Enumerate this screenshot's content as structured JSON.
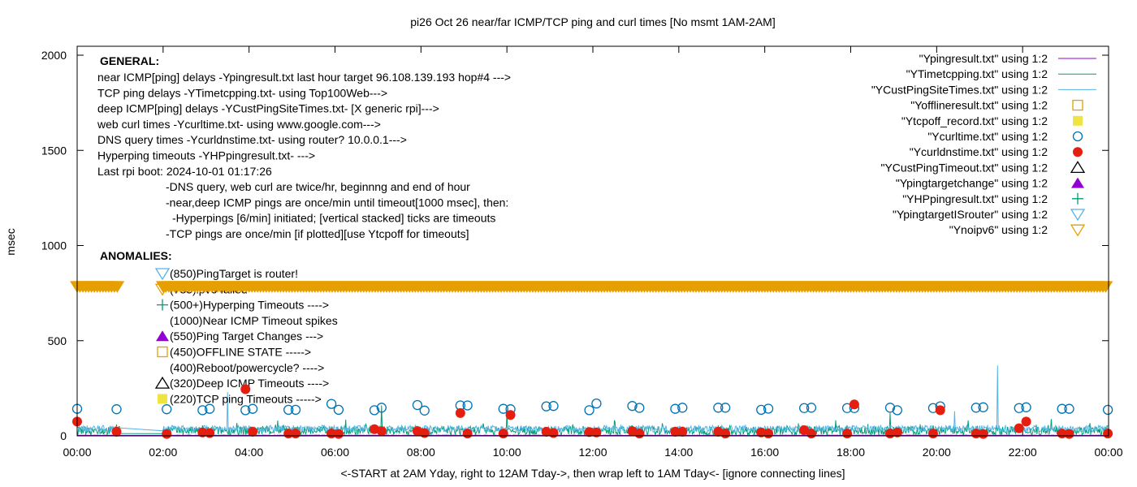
{
  "chart_data": {
    "type": "line",
    "title": "pi26 Oct 26  near/far ICMP/TCP ping and curl times [No msmt 1AM-2AM]",
    "xlabel": "<-START at 2AM Yday, right to 12AM Tday->, then wrap left to 1AM Tday<- [ignore connecting lines]",
    "ylabel": "msec",
    "ylim": [
      0,
      2000
    ],
    "yticks": [
      "0",
      "500",
      "1000",
      "1500",
      "2000"
    ],
    "xticks": [
      "00:00",
      "02:00",
      "04:00",
      "06:00",
      "08:00",
      "10:00",
      "12:00",
      "14:00",
      "16:00",
      "18:00",
      "20:00",
      "22:00",
      "00:00"
    ],
    "grid": false,
    "legend_placement": "top-right",
    "colors": {
      "ping": "#9400d3",
      "tcpping": "#009e73",
      "custping": "#56b4e9",
      "offline": "#e69f00",
      "tcpoff": "#f0e442",
      "curl": "#0072b2",
      "dns": "#e51e10",
      "custtimeout": "#000000",
      "targetchange": "#9400d3",
      "hpping": "#009e73",
      "isrouter": "#56b4e9",
      "noipv6": "#e69f00"
    },
    "legend": [
      {
        "label": "\"Ypingresult.txt\" using 1:2",
        "style": "line",
        "color": "#9400d3"
      },
      {
        "label": "\"YTimetcpping.txt\" using 1:2",
        "style": "line",
        "color": "#009e73"
      },
      {
        "label": "\"YCustPingSiteTimes.txt\" using 1:2",
        "style": "line",
        "color": "#56b4e9"
      },
      {
        "label": "\"Yofflineresult.txt\" using 1:2",
        "style": "open-square",
        "color": "#e69f00"
      },
      {
        "label": "\"Ytcpoff_record.txt\" using 1:2",
        "style": "filled-square",
        "color": "#f0e442"
      },
      {
        "label": "\"Ycurltime.txt\" using 1:2",
        "style": "open-circle",
        "color": "#0072b2"
      },
      {
        "label": "\"Ycurldnstime.txt\" using 1:2",
        "style": "filled-circle",
        "color": "#e51e10"
      },
      {
        "label": "\"YCustPingTimeout.txt\" using 1:2",
        "style": "open-triangle",
        "color": "#000000"
      },
      {
        "label": "\"Ypingtargetchange\" using 1:2",
        "style": "filled-triangle",
        "color": "#9400d3"
      },
      {
        "label": "\"YHPpingresult.txt\" using 1:2",
        "style": "plus",
        "color": "#009e73"
      },
      {
        "label": "\"YpingtargetISrouter\" using 1:2",
        "style": "open-triangle-down",
        "color": "#56b4e9"
      },
      {
        "label": "\"Ynoipv6\" using 1:2",
        "style": "open-triangle-down",
        "color": "#e69f00"
      }
    ],
    "general_heading": "GENERAL:",
    "general_lines": [
      "near ICMP[ping] delays -Ypingresult.txt last hour target 96.108.139.193 hop#4 --->",
      "TCP ping delays -YTimetcpping.txt- using Top100Web--->",
      "deep ICMP[ping] delays -YCustPingSiteTimes.txt- [X generic rpi]--->",
      "web curl times -Ycurltime.txt- using www.google.com--->",
      "DNS query times -Ycurldnstime.txt- using router? 10.0.0.1--->",
      "Hyperping timeouts -YHPpingresult.txt- --->",
      "Last rpi boot: 2024-10-01 01:17:26"
    ],
    "notes": [
      "-DNS query, web curl are twice/hr, beginnng and end of hour",
      "-near,deep ICMP pings are once/min until timeout[1000 msec], then:",
      "-Hyperpings [6/min] initiated; [vertical stacked] ticks are timeouts",
      "-TCP pings are once/min [if plotted][use Ytcpoff for timeouts]"
    ],
    "anomalies_heading": "ANOMALIES:",
    "anomalies": [
      {
        "label": "(850)PingTarget is router!",
        "marker": "open-triangle-down",
        "color": "#56b4e9"
      },
      {
        "label": "(785)ipv6 failed",
        "marker": "open-triangle-down",
        "color": "#e69f00"
      },
      {
        "label": "(500+)Hyperping Timeouts ---->",
        "marker": "plus",
        "color": "#009e73"
      },
      {
        "label": "(1000)Near ICMP Timeout spikes",
        "marker": "",
        "color": ""
      },
      {
        "label": "(550)Ping Target Changes --->",
        "marker": "filled-triangle",
        "color": "#9400d3"
      },
      {
        "label": "(450)OFFLINE STATE ----->",
        "marker": "open-square",
        "color": "#e69f00"
      },
      {
        "label": "(400)Reboot/powercycle? ---->",
        "marker": "",
        "color": ""
      },
      {
        "label": "(320)Deep ICMP Timeouts ---->",
        "marker": "open-triangle",
        "color": "#000000"
      },
      {
        "label": "(220)TCP ping Timeouts ----->",
        "marker": "filled-square",
        "color": "#f0e442"
      }
    ],
    "noipv6": {
      "value": 785,
      "ranges": [
        [
          "00:00",
          "00:58"
        ],
        [
          "02:00",
          "23:59"
        ]
      ]
    },
    "no_measurement": [
      "01:00",
      "02:00"
    ],
    "curltime": [
      [
        "00:00",
        142
      ],
      [
        "00:55",
        140
      ],
      [
        "02:05",
        140
      ],
      [
        "02:55",
        135
      ],
      [
        "03:05",
        142
      ],
      [
        "03:55",
        135
      ],
      [
        "04:05",
        142
      ],
      [
        "04:55",
        137
      ],
      [
        "05:05",
        137
      ],
      [
        "05:55",
        168
      ],
      [
        "06:05",
        137
      ],
      [
        "06:55",
        135
      ],
      [
        "07:05",
        148
      ],
      [
        "07:55",
        162
      ],
      [
        "08:05",
        133
      ],
      [
        "08:55",
        160
      ],
      [
        "09:05",
        160
      ],
      [
        "09:55",
        142
      ],
      [
        "10:05",
        140
      ],
      [
        "10:55",
        155
      ],
      [
        "11:05",
        157
      ],
      [
        "11:55",
        135
      ],
      [
        "12:05",
        170
      ],
      [
        "12:55",
        157
      ],
      [
        "13:05",
        147
      ],
      [
        "13:55",
        142
      ],
      [
        "14:05",
        148
      ],
      [
        "14:55",
        148
      ],
      [
        "15:05",
        148
      ],
      [
        "15:55",
        137
      ],
      [
        "16:05",
        143
      ],
      [
        "16:55",
        146
      ],
      [
        "17:05",
        148
      ],
      [
        "17:55",
        146
      ],
      [
        "18:05",
        146
      ],
      [
        "18:55",
        148
      ],
      [
        "19:05",
        135
      ],
      [
        "19:55",
        146
      ],
      [
        "20:05",
        155
      ],
      [
        "20:55",
        148
      ],
      [
        "21:05",
        150
      ],
      [
        "21:55",
        146
      ],
      [
        "22:05",
        150
      ],
      [
        "22:55",
        142
      ],
      [
        "23:05",
        142
      ],
      [
        "23:59",
        137
      ]
    ],
    "curldnstime": [
      [
        "00:00",
        75
      ],
      [
        "00:55",
        22
      ],
      [
        "02:05",
        10
      ],
      [
        "02:55",
        18
      ],
      [
        "03:05",
        15
      ],
      [
        "03:55",
        245
      ],
      [
        "04:05",
        22
      ],
      [
        "04:55",
        12
      ],
      [
        "05:05",
        12
      ],
      [
        "05:55",
        12
      ],
      [
        "06:05",
        10
      ],
      [
        "06:55",
        35
      ],
      [
        "07:05",
        25
      ],
      [
        "07:55",
        25
      ],
      [
        "08:05",
        15
      ],
      [
        "08:55",
        120
      ],
      [
        "09:05",
        12
      ],
      [
        "09:55",
        12
      ],
      [
        "10:05",
        110
      ],
      [
        "10:55",
        22
      ],
      [
        "11:05",
        15
      ],
      [
        "11:55",
        20
      ],
      [
        "12:05",
        18
      ],
      [
        "12:55",
        25
      ],
      [
        "13:05",
        12
      ],
      [
        "13:55",
        22
      ],
      [
        "14:05",
        22
      ],
      [
        "14:55",
        22
      ],
      [
        "15:05",
        12
      ],
      [
        "15:55",
        18
      ],
      [
        "16:05",
        12
      ],
      [
        "16:55",
        30
      ],
      [
        "17:05",
        12
      ],
      [
        "17:55",
        12
      ],
      [
        "18:05",
        165
      ],
      [
        "18:55",
        12
      ],
      [
        "19:05",
        18
      ],
      [
        "19:55",
        12
      ],
      [
        "20:05",
        135
      ],
      [
        "20:55",
        12
      ],
      [
        "21:05",
        10
      ],
      [
        "21:55",
        40
      ],
      [
        "22:05",
        75
      ],
      [
        "22:55",
        12
      ],
      [
        "23:05",
        10
      ],
      [
        "23:59",
        12
      ]
    ],
    "ping_typical": 3,
    "tcpping_typical_range": [
      5,
      50
    ],
    "custping_typical_range": [
      20,
      55
    ],
    "spikes": {
      "custping": [
        [
          "03:30",
          230
        ],
        [
          "20:25",
          130
        ],
        [
          "21:25",
          370
        ]
      ],
      "tcpping": [
        [
          "00:55",
          60
        ],
        [
          "02:55",
          55
        ],
        [
          "04:40",
          80
        ],
        [
          "07:05",
          160
        ],
        [
          "10:00",
          130
        ],
        [
          "12:55",
          55
        ],
        [
          "14:55",
          55
        ],
        [
          "18:55",
          120
        ],
        [
          "19:55",
          55
        ],
        [
          "23:59",
          55
        ]
      ]
    }
  }
}
